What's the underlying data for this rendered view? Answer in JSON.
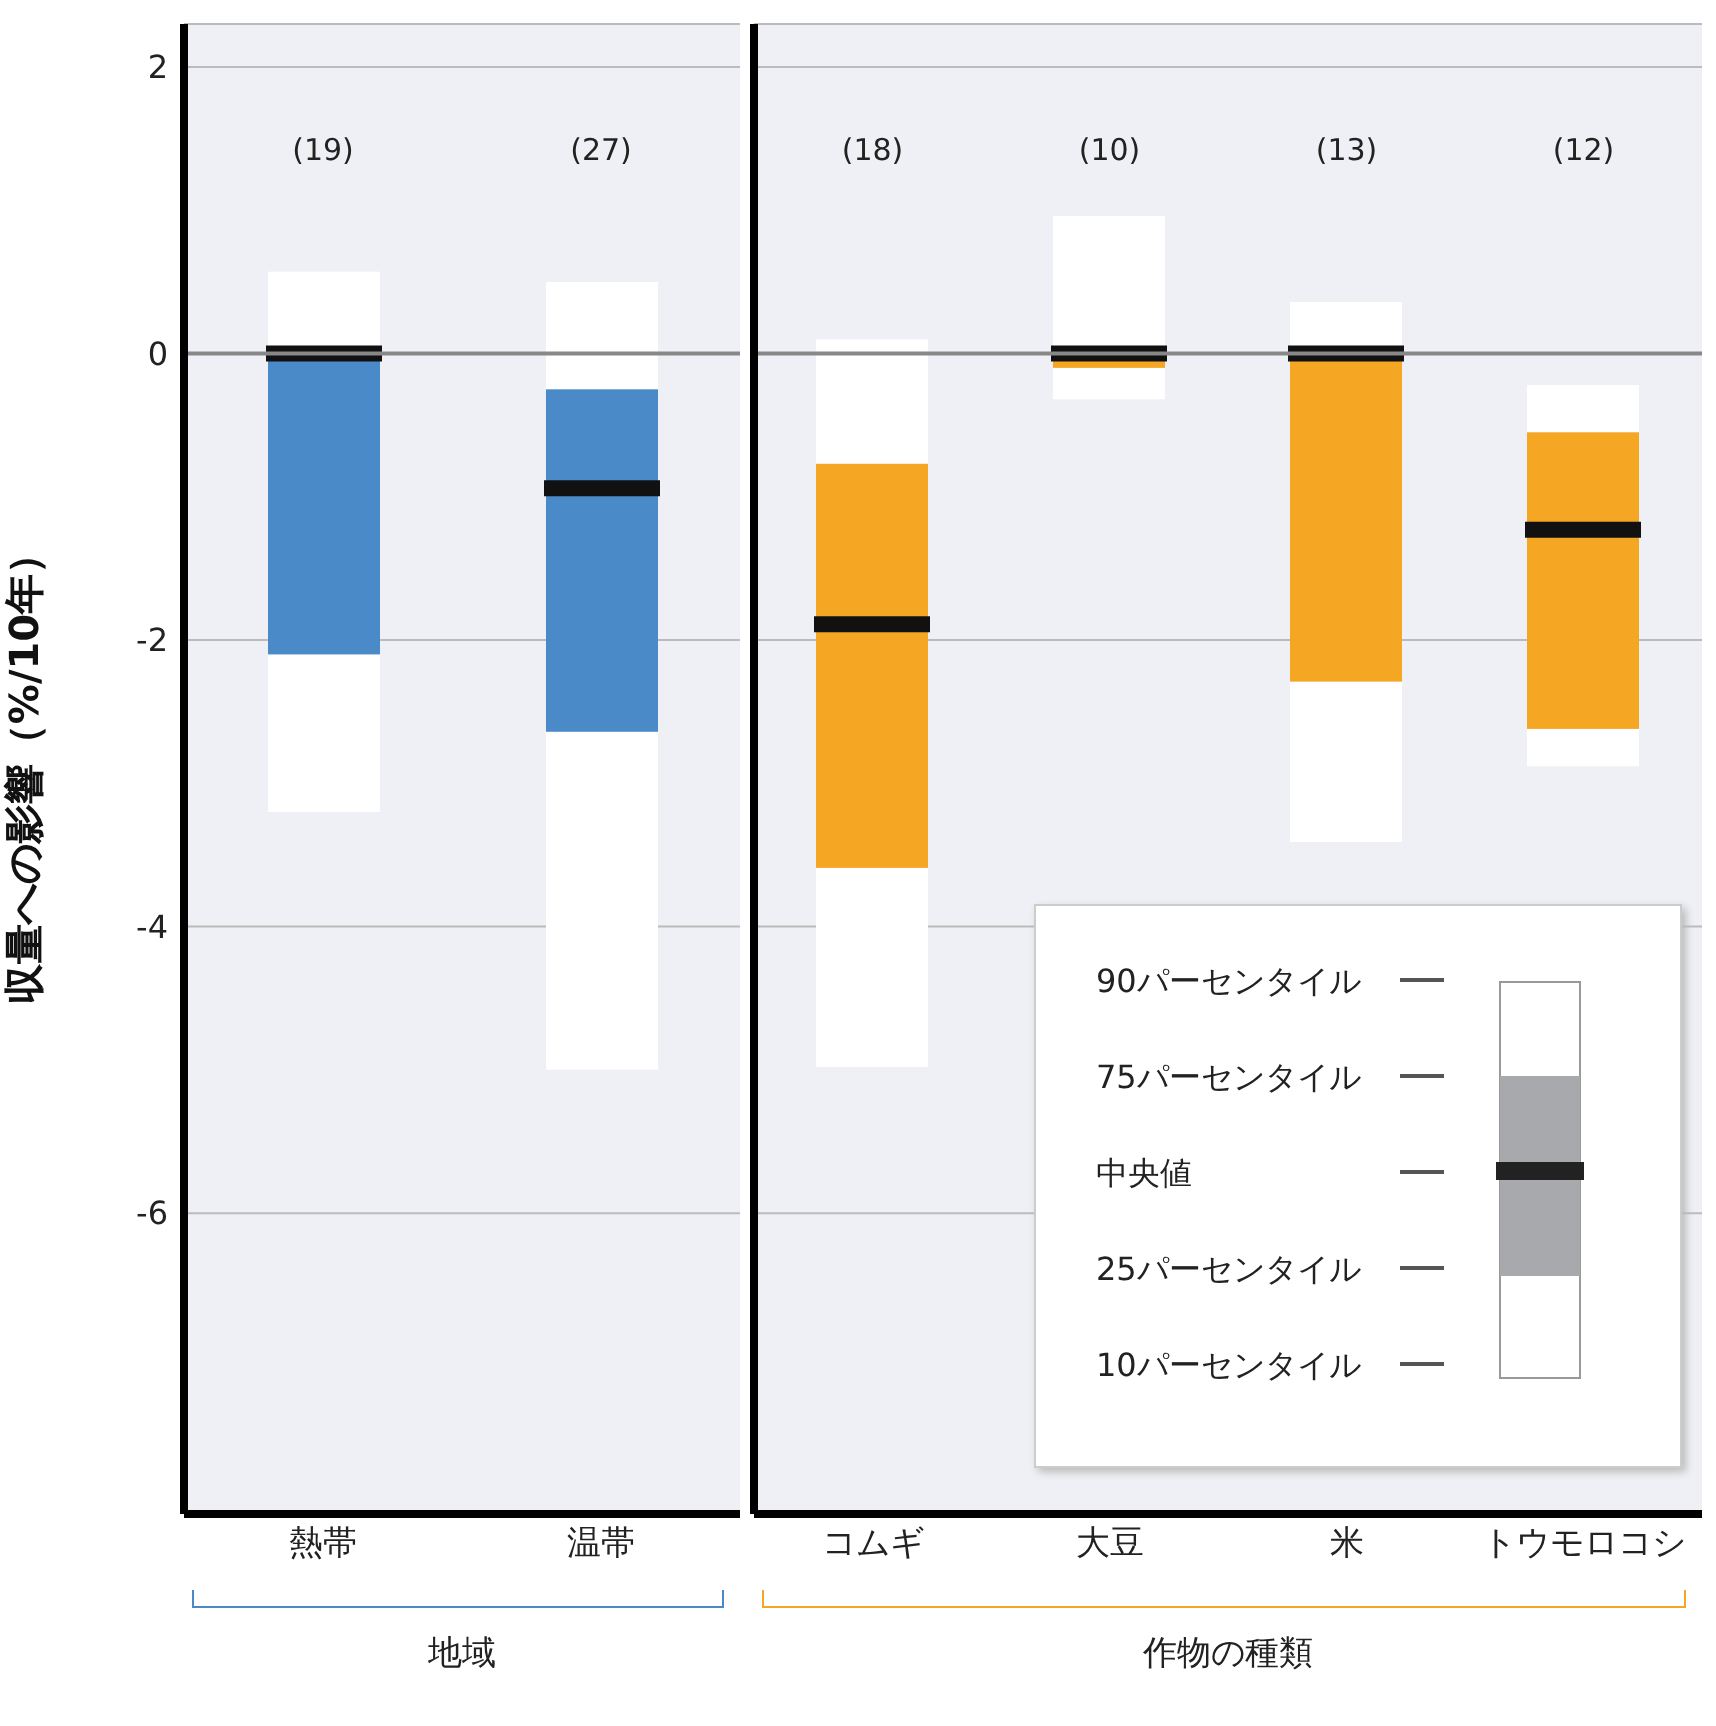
{
  "chart_data": [
    {
      "type": "box",
      "ylabel": "収量への影響（%/10年）",
      "categories": [
        "熱帯",
        "温帯"
      ],
      "ylim": [
        -8.1,
        2.3
      ],
      "yticks": [
        -6,
        -4,
        -2,
        0,
        2
      ],
      "grid": "y",
      "ref_lines": [
        {
          "axis": "y",
          "value": 0,
          "color": "#888888"
        }
      ],
      "series": [
        {
          "color": "#4a8ac9",
          "boxes": [
            {
              "low": -3.2,
              "q1": -2.1,
              "median": 0,
              "q3": 0,
              "high": 0.57
            },
            {
              "low": -5.0,
              "q1": -2.64,
              "median": -0.94,
              "q3": -0.25,
              "high": 0.5
            }
          ]
        }
      ],
      "annotations": [
        "(19)",
        "(27)",
        "地域"
      ]
    },
    {
      "type": "box",
      "categories": [
        "コムギ",
        "大豆",
        "米",
        "トウモロコシ"
      ],
      "ylim": [
        -8.1,
        2.3
      ],
      "yticks": [
        -6,
        -4,
        -2,
        0,
        2
      ],
      "grid": "y",
      "tick_labels": "x",
      "ref_lines": [
        {
          "axis": "y",
          "value": 0,
          "color": "#888888"
        }
      ],
      "series": [
        {
          "color": "#f5a623",
          "boxes": [
            {
              "low": -4.98,
              "q1": -3.59,
              "median": -1.89,
              "q3": -0.77,
              "high": 0.1
            },
            {
              "low": -0.32,
              "q1": -0.1,
              "median": 0,
              "q3": 0,
              "high": 0.96
            },
            {
              "low": -3.41,
              "q1": -2.29,
              "median": 0,
              "q3": 0,
              "high": 0.36
            },
            {
              "low": -2.88,
              "q1": -2.62,
              "median": -1.23,
              "q3": -0.55,
              "high": -0.22
            }
          ]
        }
      ],
      "annotations": [
        "(18)",
        "(10)",
        "(13)",
        "(12)",
        "作物の種類",
        "90パーセンタイル",
        "75パーセンタイル",
        "中央値",
        "25パーセンタイル",
        "10パーセンタイル"
      ]
    }
  ]
}
